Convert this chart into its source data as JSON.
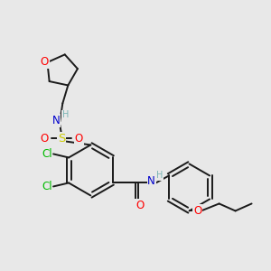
{
  "bg_color": "#e8e8e8",
  "bond_color": "#1a1a1a",
  "bond_width": 1.4,
  "atom_colors": {
    "O": "#ff0000",
    "N": "#0000cc",
    "S": "#cccc00",
    "Cl": "#00bb00",
    "H": "#7ab5b5",
    "C": "#1a1a1a"
  },
  "font_size": 8.5,
  "figsize": [
    3.0,
    3.0
  ],
  "dpi": 100
}
